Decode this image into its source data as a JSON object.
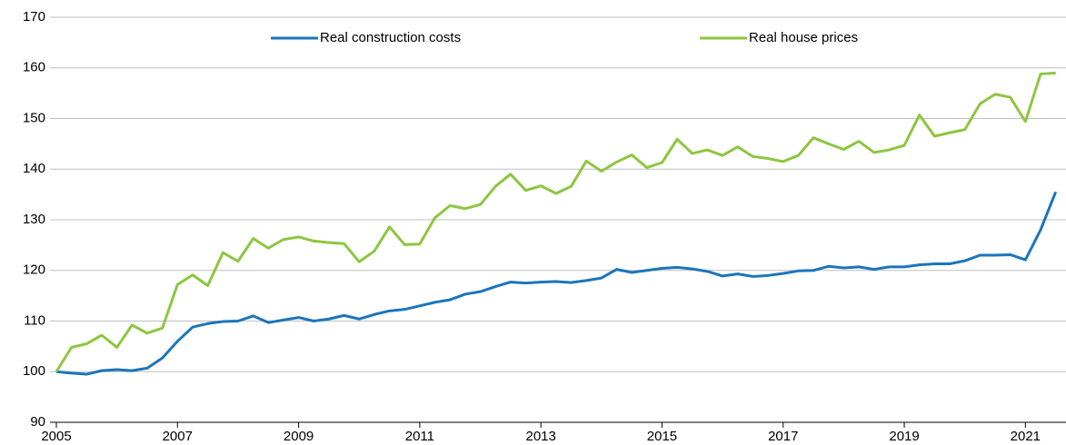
{
  "chart_data": {
    "type": "line",
    "x": [
      2005,
      2005.25,
      2005.5,
      2005.75,
      2006,
      2006.25,
      2006.5,
      2006.75,
      2007,
      2007.25,
      2007.5,
      2007.75,
      2008,
      2008.25,
      2008.5,
      2008.75,
      2009,
      2009.25,
      2009.5,
      2009.75,
      2010,
      2010.25,
      2010.5,
      2010.75,
      2011,
      2011.25,
      2011.5,
      2011.75,
      2012,
      2012.25,
      2012.5,
      2012.75,
      2013,
      2013.25,
      2013.5,
      2013.75,
      2014,
      2014.25,
      2014.5,
      2014.75,
      2015,
      2015.25,
      2015.5,
      2015.75,
      2016,
      2016.25,
      2016.5,
      2016.75,
      2017,
      2017.25,
      2017.5,
      2017.75,
      2018,
      2018.25,
      2018.5,
      2018.75,
      2019,
      2019.25,
      2019.5,
      2019.75,
      2020,
      2020.25,
      2020.5,
      2020.75,
      2021,
      2021.25,
      2021.5
    ],
    "series": [
      {
        "name": "Real construction costs",
        "color": "#1b75bb",
        "values": [
          100,
          99.7,
          99.5,
          100.2,
          100.4,
          100.2,
          100.7,
          102.7,
          106,
          108.8,
          109.5,
          109.9,
          110,
          111,
          109.7,
          110.2,
          110.7,
          110,
          110.4,
          111.1,
          110.4,
          111.3,
          112,
          112.3,
          113,
          113.7,
          114.2,
          115.3,
          115.8,
          116.8,
          117.7,
          117.5,
          117.7,
          117.8,
          117.6,
          118,
          118.5,
          120.2,
          119.6,
          120,
          120.4,
          120.6,
          120.3,
          119.8,
          118.9,
          119.3,
          118.8,
          119,
          119.4,
          119.9,
          120,
          120.8,
          120.5,
          120.7,
          120.2,
          120.7,
          120.7,
          121.1,
          121.3,
          121.3,
          121.9,
          123,
          123,
          123.1,
          122.1,
          128,
          135.5
        ]
      },
      {
        "name": "Real house prices",
        "color": "#8dc63f",
        "values": [
          100,
          104.8,
          105.5,
          107.2,
          104.8,
          109.2,
          107.6,
          108.6,
          117.2,
          119.1,
          117,
          123.5,
          121.8,
          126.3,
          124.4,
          126.1,
          126.6,
          125.8,
          125.5,
          125.3,
          121.7,
          123.8,
          128.6,
          125.1,
          125.2,
          130.4,
          132.8,
          132.2,
          133,
          136.6,
          139,
          135.8,
          136.7,
          135.2,
          136.6,
          141.6,
          139.6,
          141.4,
          142.8,
          140.3,
          141.3,
          145.9,
          143.1,
          143.8,
          142.7,
          144.4,
          142.5,
          142.1,
          141.5,
          142.7,
          146.2,
          145,
          143.9,
          145.5,
          143.3,
          143.8,
          144.7,
          150.7,
          146.5,
          147.2,
          147.8,
          152.9,
          154.8,
          154.2,
          149.4,
          158.8,
          159
        ]
      }
    ],
    "xlim": [
      2005,
      2021.67
    ],
    "xticks": [
      2005,
      2007,
      2009,
      2011,
      2013,
      2015,
      2017,
      2019,
      2021
    ],
    "ylim": [
      90,
      170
    ],
    "yticks": [
      90,
      100,
      110,
      120,
      130,
      140,
      150,
      160,
      170
    ],
    "grid": true,
    "legend": "top"
  }
}
